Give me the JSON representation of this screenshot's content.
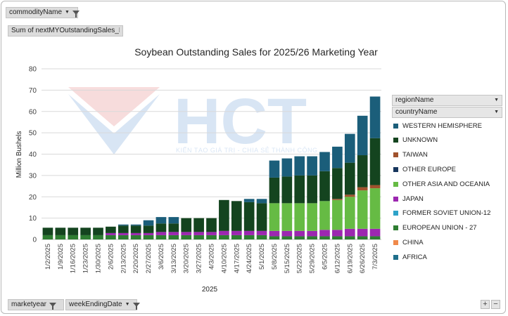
{
  "pivot": {
    "filter_field": "commodityName",
    "value_field": "Sum of nextMYOutstandingSales_E",
    "legend_fields": [
      "regionName",
      "countryName"
    ],
    "axis_fields": [
      "marketyear",
      "weekEndingDate"
    ]
  },
  "watermark": {
    "logo_text": "HCT",
    "tagline": "KIẾN TẠO GIÁ TRỊ - CHIA SẺ THÀNH CÔNG"
  },
  "zoom": {
    "plus": "+",
    "minus": "−"
  },
  "chart_data": {
    "type": "bar",
    "stacked": true,
    "title": "Soybean Outstanding Sales for 2025/26 Marketing Year",
    "ylabel": "Million Bushels",
    "xlabel": "2025",
    "ylim": [
      0,
      80
    ],
    "yticks": [
      0,
      10,
      20,
      30,
      40,
      50,
      60,
      70,
      80
    ],
    "grid": true,
    "legend_position": "right",
    "categories": [
      "1/2/2025",
      "1/9/2025",
      "1/16/2025",
      "1/23/2025",
      "1/30/2025",
      "2/6/2025",
      "2/13/2025",
      "2/20/2025",
      "2/27/2025",
      "3/6/2025",
      "3/13/2025",
      "3/20/2025",
      "3/27/2025",
      "4/3/2025",
      "4/10/2025",
      "4/17/2025",
      "4/24/2025",
      "5/1/2025",
      "5/8/2025",
      "5/15/2025",
      "5/22/2025",
      "5/29/2025",
      "6/5/2025",
      "6/12/2025",
      "6/19/2025",
      "6/26/2025",
      "7/3/2025"
    ],
    "series": [
      {
        "name": "EUROPEAN UNION - 27",
        "color": "#2e7d32",
        "values": [
          2,
          2,
          2,
          2,
          2,
          2,
          2,
          2,
          2,
          2,
          2,
          2,
          2,
          2,
          2,
          2,
          2,
          2,
          1.5,
          1.5,
          1.5,
          1.5,
          1.5,
          1.5,
          1.5,
          1.5,
          1.5
        ]
      },
      {
        "name": "JAPAN",
        "color": "#9c27b0",
        "values": [
          0,
          0,
          0,
          0,
          0,
          1,
          1,
          1,
          1,
          1.5,
          1.5,
          1.5,
          1.5,
          1.5,
          2,
          2,
          2,
          2,
          2.5,
          2.5,
          2.5,
          2.5,
          3,
          3,
          3.5,
          3.5,
          3.5
        ]
      },
      {
        "name": "OTHER ASIA AND OCEANIA",
        "color": "#66bb44",
        "values": [
          0,
          0,
          0,
          0,
          0,
          0,
          0,
          0,
          0,
          0,
          0,
          0,
          0,
          0,
          0,
          0,
          0,
          0,
          13,
          13,
          13,
          13,
          13.5,
          14,
          15,
          18,
          19
        ]
      },
      {
        "name": "TAIWAN",
        "color": "#a0522d",
        "values": [
          0,
          0,
          0,
          0,
          0,
          0,
          0,
          0,
          0,
          0,
          0,
          0,
          0,
          0,
          0,
          0,
          0,
          0,
          0,
          0,
          0,
          0,
          0,
          0.5,
          1,
          1.5,
          1.5
        ]
      },
      {
        "name": "UNKNOWN",
        "color": "#14441f",
        "values": [
          3.5,
          3.5,
          3.5,
          3.5,
          3.5,
          3,
          3.5,
          3.5,
          3.5,
          4,
          4,
          6.5,
          6.5,
          6.5,
          14.5,
          14,
          13.5,
          13,
          12,
          12.5,
          13,
          13,
          14,
          14.5,
          15,
          15,
          22
        ]
      },
      {
        "name": "WESTERN HEMISPHERE",
        "color": "#1b5e7a",
        "values": [
          0,
          0,
          0,
          0,
          0,
          0,
          0.5,
          0.5,
          2.5,
          3,
          3,
          0,
          0,
          0,
          0,
          0,
          1.5,
          2,
          8,
          8.5,
          9,
          9,
          9,
          10,
          13.5,
          18.5,
          19.5
        ]
      }
    ],
    "legend": [
      {
        "name": "WESTERN HEMISPHERE",
        "color": "#1b5e7a"
      },
      {
        "name": "UNKNOWN",
        "color": "#14441f"
      },
      {
        "name": "TAIWAN",
        "color": "#a0522d"
      },
      {
        "name": "OTHER EUROPE",
        "color": "#17365d"
      },
      {
        "name": "OTHER ASIA AND OCEANIA",
        "color": "#66bb44"
      },
      {
        "name": "JAPAN",
        "color": "#9c27b0"
      },
      {
        "name": "FORMER SOVIET UNION-12",
        "color": "#2ea3c9"
      },
      {
        "name": "EUROPEAN UNION - 27",
        "color": "#2e7d32"
      },
      {
        "name": "CHINA",
        "color": "#f08a4b"
      },
      {
        "name": "AFRICA",
        "color": "#1f6f8b"
      }
    ]
  }
}
